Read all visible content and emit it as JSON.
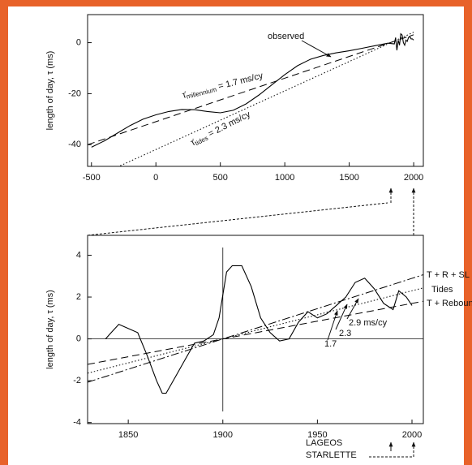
{
  "chart_data": [
    {
      "type": "line",
      "ylabel": "length of day, τ (ms)",
      "xlim": [
        -530,
        2075
      ],
      "ylim": [
        -48.5,
        11
      ],
      "xticks": [
        -500,
        0,
        500,
        1000,
        1500,
        2000
      ],
      "yticks": [
        -40,
        -20,
        0
      ],
      "series": [
        {
          "name": "observed",
          "color": "#000000",
          "style": "solid",
          "x": [
            -500,
            -400,
            -300,
            -200,
            -100,
            0,
            100,
            200,
            300,
            400,
            500,
            600,
            700,
            800,
            900,
            1000,
            1100,
            1200,
            1300,
            1400,
            1500,
            1600,
            1700,
            1800,
            1850,
            1860,
            1870,
            1880,
            1890,
            1900,
            1910,
            1920,
            1930,
            1940,
            1950,
            1960,
            1970,
            1980,
            1990,
            2000
          ],
          "values": [
            -41,
            -38.5,
            -35.5,
            -32.5,
            -30,
            -28.3,
            -27,
            -26.2,
            -26.3,
            -27,
            -27.5,
            -26.5,
            -24,
            -20.5,
            -16.5,
            -12.5,
            -9,
            -6.5,
            -5,
            -4,
            -3.2,
            -2.2,
            -1.2,
            -0.2,
            -0.5,
            2,
            -3,
            1,
            -1,
            3.5,
            3,
            0,
            -1,
            1,
            0.5,
            2,
            2.5,
            1.5,
            1.5,
            1
          ]
        },
        {
          "color": "#000000",
          "style": "dashed",
          "x": [
            -530,
            2000
          ],
          "values": [
            -40,
            3.1
          ]
        },
        {
          "color": "#000000",
          "style": "dotted",
          "x": [
            -300,
            2000
          ],
          "values": [
            -48.8,
            4.1
          ]
        }
      ],
      "annotations": [
        {
          "text": "observed"
        },
        {
          "symbol": "τ̇",
          "subscript": "millennium",
          "text": " = 1.7 ms/cy"
        },
        {
          "symbol": "τ̇",
          "subscript": "tides",
          "text": " = 2.3 ms/cy"
        }
      ]
    },
    {
      "type": "line",
      "ylabel": "length of day, τ (ms)",
      "xlim": [
        1828.5,
        2006
      ],
      "ylim": [
        -4.05,
        4.95
      ],
      "xticks": [
        1850,
        1900,
        1950,
        2000
      ],
      "yticks": [
        -4,
        -2,
        0,
        2,
        4
      ],
      "series": [
        {
          "color": "#000000",
          "style": "solid",
          "x": [
            1838,
            1840,
            1845,
            1850,
            1855,
            1860,
            1865,
            1868,
            1870,
            1875,
            1880,
            1885,
            1890,
            1895,
            1898,
            1902,
            1905,
            1910,
            1915,
            1920,
            1925,
            1930,
            1935,
            1940,
            1945,
            1950,
            1955,
            1960,
            1965,
            1970,
            1975,
            1980,
            1985,
            1990,
            1993,
            1997,
            2000
          ],
          "values": [
            0,
            0.2,
            0.7,
            0.5,
            0.3,
            -0.8,
            -2,
            -2.6,
            -2.6,
            -1.8,
            -1,
            -0.2,
            -0.1,
            0.2,
            1,
            3.2,
            3.5,
            3.5,
            2.5,
            1,
            0.3,
            -0.1,
            0,
            0.8,
            1.3,
            1,
            1.2,
            1.6,
            2,
            2.7,
            2.9,
            2.4,
            1.7,
            1.4,
            2.3,
            2,
            1.6
          ]
        },
        {
          "name": "T + R + SL",
          "color": "#000000",
          "style": "dashdot",
          "x": [
            1828.5,
            2006
          ],
          "values": [
            -2.07,
            3.07
          ]
        },
        {
          "name": "Tides",
          "color": "#000000",
          "style": "dotted",
          "x": [
            1828.5,
            2006
          ],
          "values": [
            -1.64,
            2.44
          ]
        },
        {
          "name": "T + Rebound",
          "color": "#000000",
          "style": "dashed",
          "x": [
            1828.5,
            2006
          ],
          "values": [
            -1.22,
            1.8
          ]
        }
      ],
      "annotations": [
        {
          "text": "2.9 ms/cy"
        },
        {
          "text": "2.3"
        },
        {
          "text": "1.7"
        },
        {
          "text": "LAGEOS"
        },
        {
          "text": "STARLETTE"
        }
      ]
    }
  ]
}
